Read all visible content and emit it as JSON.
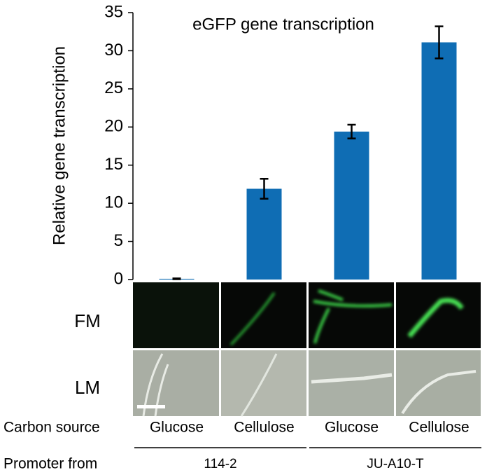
{
  "chart_data": {
    "type": "bar",
    "title": "eGFP gene transcription",
    "y_label": "Relative gene transcription",
    "categories": [
      "Glucose",
      "Cellulose",
      "Glucose",
      "Cellulose"
    ],
    "values": [
      0.1,
      11.9,
      19.4,
      31.1
    ],
    "errors": [
      0.05,
      1.3,
      0.9,
      2.1
    ],
    "color": "#0f6db4",
    "ylim": [
      0,
      35
    ],
    "yticks": [
      0,
      5,
      10,
      15,
      20,
      25,
      30,
      35
    ],
    "image_rows": [
      "FM",
      "LM"
    ],
    "x_label": "Carbon source",
    "group_label": "Promoter from",
    "groups": [
      "114-2",
      "JU-A10-T"
    ]
  }
}
